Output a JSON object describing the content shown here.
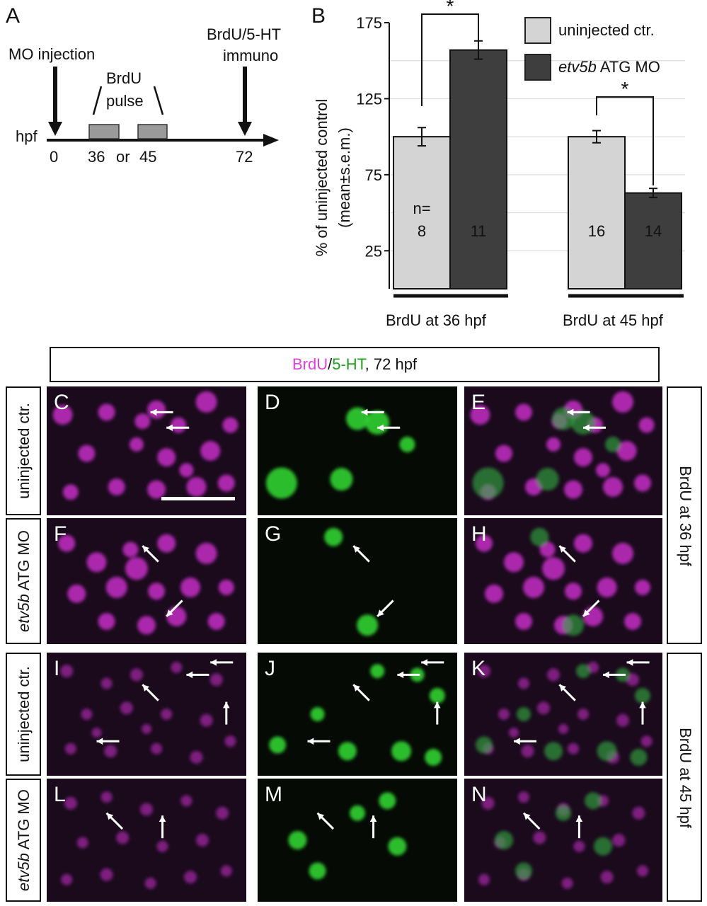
{
  "panelA": {
    "letter": "A",
    "mo_injection": "MO injection",
    "brdu": "BrdU",
    "pulse": "pulse",
    "immuno_line1": "BrdU/5-HT",
    "immuno_line2": "immuno",
    "hpf": "hpf",
    "ticks": [
      "0",
      "36",
      "or",
      "45",
      "72"
    ]
  },
  "panelB": {
    "letter": "B",
    "sig_marker": "*",
    "n_prefix": "n=",
    "group_labels": [
      "BrdU at 36 hpf",
      "BrdU at 45 hpf"
    ],
    "legend_plain": "uninjected ctr.",
    "legend_italic": "etv5b",
    "legend_rest": " ATG MO"
  },
  "chart_data": {
    "type": "bar",
    "ylabel_line1": "% of uninjected control",
    "ylabel_line2": "(mean±s.e.m.)",
    "ylim": [
      0,
      175
    ],
    "yticks": [
      25,
      75,
      125,
      175
    ],
    "grid": true,
    "legend_position": "top-right",
    "categories": [
      "BrdU at 36 hpf",
      "BrdU at 45 hpf"
    ],
    "series": [
      {
        "name": "uninjected ctr.",
        "color": "#d4d4d4",
        "values": [
          100,
          100
        ],
        "sem": [
          6,
          4
        ],
        "n": [
          "8",
          "16"
        ]
      },
      {
        "name": "etv5b ATG MO",
        "color": "#3e3e3e",
        "values": [
          157,
          63
        ],
        "sem": [
          6,
          3
        ],
        "n": [
          "11",
          "14"
        ]
      }
    ]
  },
  "micrographs": {
    "header_brdu": "BrdU",
    "header_slash": "/",
    "header_5ht": "5-HT",
    "header_rest": ", 72 hpf",
    "row_uninjected": "uninjected ctr.",
    "row_mo_italic": "etv5b",
    "row_mo_rest": " ATG MO",
    "side_36": "BrdU at 36 hpf",
    "side_45": "BrdU at 45 hpf",
    "letters": [
      "C",
      "D",
      "E",
      "F",
      "G",
      "H",
      "I",
      "J",
      "K",
      "L",
      "M",
      "N"
    ],
    "colors": {
      "brdu": "#d030d0",
      "ht": "#30d030",
      "merge": "#b8a0b8"
    }
  }
}
